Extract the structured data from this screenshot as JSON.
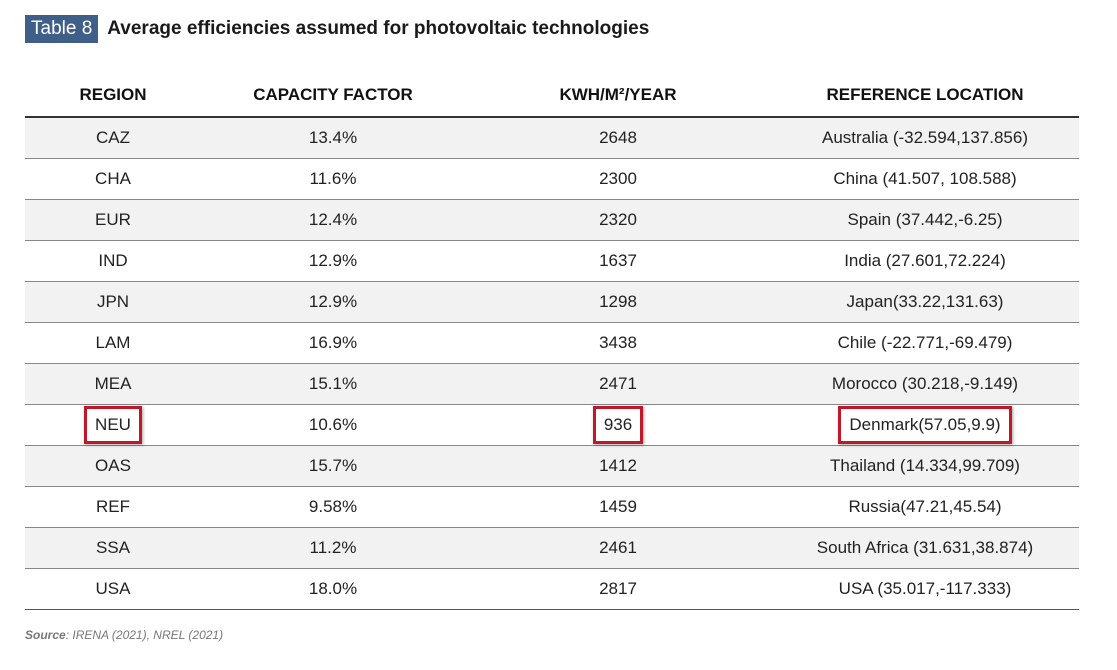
{
  "header": {
    "badge": "Table 8",
    "title": "Average efficiencies assumed for photovoltaic technologies"
  },
  "table": {
    "columns": [
      "REGION",
      "CAPACITY FACTOR",
      "KWH/M²/YEAR",
      "REFERENCE LOCATION"
    ],
    "rows": [
      {
        "region": "CAZ",
        "capacity": "13.4%",
        "kwh": "2648",
        "location": "Australia (-32.594,137.856)",
        "highlight": false
      },
      {
        "region": "CHA",
        "capacity": "11.6%",
        "kwh": "2300",
        "location": "China (41.507, 108.588)",
        "highlight": false
      },
      {
        "region": "EUR",
        "capacity": "12.4%",
        "kwh": "2320",
        "location": "Spain (37.442,-6.25)",
        "highlight": false
      },
      {
        "region": "IND",
        "capacity": "12.9%",
        "kwh": "1637",
        "location": "India (27.601,72.224)",
        "highlight": false
      },
      {
        "region": "JPN",
        "capacity": "12.9%",
        "kwh": "1298",
        "location": "Japan(33.22,131.63)",
        "highlight": false
      },
      {
        "region": "LAM",
        "capacity": "16.9%",
        "kwh": "3438",
        "location": "Chile (-22.771,-69.479)",
        "highlight": false
      },
      {
        "region": "MEA",
        "capacity": "15.1%",
        "kwh": "2471",
        "location": "Morocco (30.218,-9.149)",
        "highlight": false
      },
      {
        "region": "NEU",
        "capacity": "10.6%",
        "kwh": "936",
        "location": "Denmark(57.05,9.9)",
        "highlight": true
      },
      {
        "region": "OAS",
        "capacity": "15.7%",
        "kwh": "1412",
        "location": "Thailand (14.334,99.709)",
        "highlight": false
      },
      {
        "region": "REF",
        "capacity": "9.58%",
        "kwh": "1459",
        "location": "Russia(47.21,45.54)",
        "highlight": false
      },
      {
        "region": "SSA",
        "capacity": "11.2%",
        "kwh": "2461",
        "location": "South Africa (31.631,38.874)",
        "highlight": false
      },
      {
        "region": "USA",
        "capacity": "18.0%",
        "kwh": "2817",
        "location": "USA (35.017,-117.333)",
        "highlight": false
      }
    ],
    "highlight_color": "#c0182b"
  },
  "footer": {
    "source_label": "Source",
    "source_text": ": IRENA (2021), NREL (2021)"
  }
}
